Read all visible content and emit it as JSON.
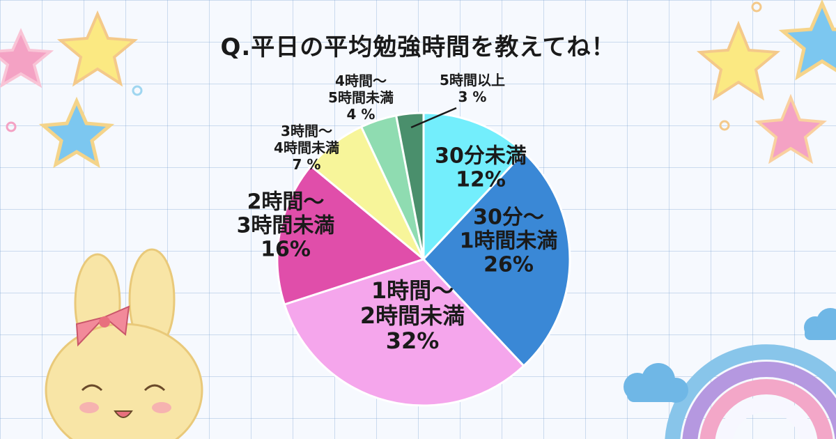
{
  "title": "Q.平日の平均勉強時間を教えてね！",
  "chart_data": {
    "type": "pie",
    "title": "Q.平日の平均勉強時間を教えてね！",
    "start_angle_deg": 0,
    "direction": "clockwise",
    "slices": [
      {
        "label": [
          "30分未満"
        ],
        "value": 12,
        "value_text": "12%",
        "color": "#73eefc"
      },
      {
        "label": [
          "30分～",
          "1時間未満"
        ],
        "value": 26,
        "value_text": "26%",
        "color": "#3a88d6"
      },
      {
        "label": [
          "1時間～",
          "2時間未満"
        ],
        "value": 32,
        "value_text": "32%",
        "color": "#f5a6ec"
      },
      {
        "label": [
          "2時間～",
          "3時間未満"
        ],
        "value": 16,
        "value_text": "16%",
        "color": "#e04eaa"
      },
      {
        "label": [
          "3時間～",
          "4時間未満"
        ],
        "value": 7,
        "value_text": "7 %",
        "color": "#f7f59a"
      },
      {
        "label": [
          "4時間～",
          "5時間未満"
        ],
        "value": 4,
        "value_text": "4 %",
        "color": "#8fdcb1"
      },
      {
        "label": [
          "5時間以上"
        ],
        "value": 3,
        "value_text": "3 %",
        "color": "#4a8f6c"
      }
    ]
  },
  "colors": {
    "grid": "#a7c2e2",
    "star_yellow": "#fbe982",
    "star_blue": "#7cc7f0",
    "star_pink": "#f4a2c4",
    "bunny": "#f8e5a6",
    "bow": "#f28a9a"
  }
}
